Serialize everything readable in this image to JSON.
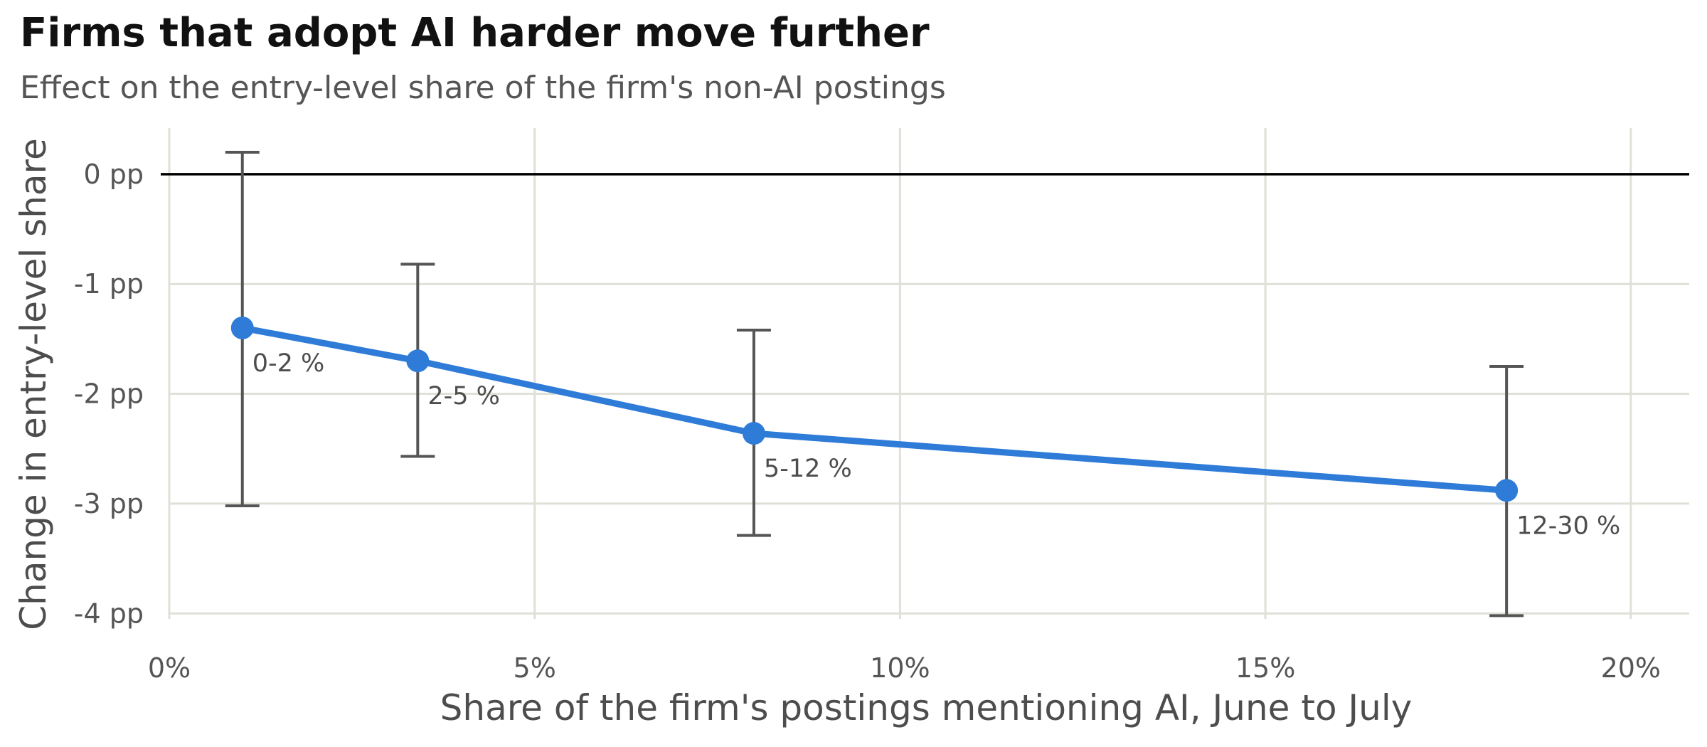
{
  "chart_data": {
    "type": "line",
    "title": "Firms that adopt AI harder move further",
    "subtitle": "Effect on the entry-level share of the firm's non-AI postings",
    "xlabel": "Share of the firm's postings mentioning AI, June to July",
    "ylabel": "Change in entry-level share",
    "xlim": [
      0,
      0.208
    ],
    "ylim": [
      -4.05,
      0.42
    ],
    "x_ticks": [
      {
        "value": 0,
        "label": "0%"
      },
      {
        "value": 0.05,
        "label": "5%"
      },
      {
        "value": 0.1,
        "label": "10%"
      },
      {
        "value": 0.15,
        "label": "15%"
      },
      {
        "value": 0.2,
        "label": "20%"
      }
    ],
    "y_ticks": [
      {
        "value": 0,
        "label": "0 pp"
      },
      {
        "value": -1,
        "label": "-1 pp"
      },
      {
        "value": -2,
        "label": "-2 pp"
      },
      {
        "value": -3,
        "label": "-3 pp"
      },
      {
        "value": -4,
        "label": "-4 pp"
      }
    ],
    "reference_line": 0,
    "grid": true,
    "points": [
      {
        "x": 0.01,
        "y": -1.4,
        "lo": -3.02,
        "hi": 0.2,
        "label": "0-2 %"
      },
      {
        "x": 0.034,
        "y": -1.7,
        "lo": -2.57,
        "hi": -0.82,
        "label": "2-5 %"
      },
      {
        "x": 0.08,
        "y": -2.36,
        "lo": -3.29,
        "hi": -1.42,
        "label": "5-12 %"
      },
      {
        "x": 0.183,
        "y": -2.88,
        "lo": -4.02,
        "hi": -1.75,
        "label": "12-30 %"
      }
    ],
    "colors": {
      "line": "#2e7bd8",
      "errorbar": "#555555",
      "grid": "#e0e0d8",
      "zero": "#000000"
    }
  }
}
